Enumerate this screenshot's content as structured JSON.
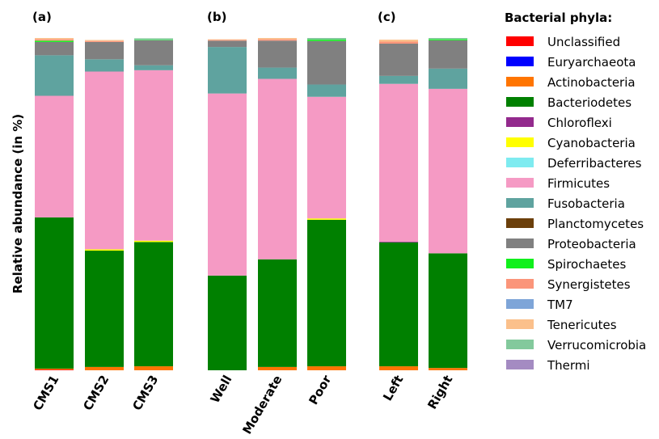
{
  "chart_data": {
    "type": "bar",
    "stacked": true,
    "ylabel": "Relative abundance (in %)",
    "ylim": [
      0,
      100
    ],
    "legend_title": "Bacterial phyla:",
    "legend_position": "right",
    "phyla": [
      {
        "name": "Unclassified",
        "color": "#ff0000"
      },
      {
        "name": "Euryarchaeota",
        "color": "#0000ff"
      },
      {
        "name": "Actinobacteria",
        "color": "#ff7500"
      },
      {
        "name": "Bacteriodetes",
        "color": "#008000"
      },
      {
        "name": "Chloroflexi",
        "color": "#932a8d"
      },
      {
        "name": "Cyanobacteria",
        "color": "#ffff00"
      },
      {
        "name": "Deferribacteres",
        "color": "#7eebf0"
      },
      {
        "name": "Firmicutes",
        "color": "#f59ac4"
      },
      {
        "name": "Fusobacteria",
        "color": "#5fa39f"
      },
      {
        "name": "Planctomycetes",
        "color": "#6b3f0b"
      },
      {
        "name": "Proteobacteria",
        "color": "#808080"
      },
      {
        "name": "Spirochaetes",
        "color": "#10f01c"
      },
      {
        "name": "Synergistetes",
        "color": "#fb957a"
      },
      {
        "name": "TM7",
        "color": "#7ea5d8"
      },
      {
        "name": "Tenericutes",
        "color": "#fbc08b"
      },
      {
        "name": "Verrucomicrobia",
        "color": "#83c99c"
      },
      {
        "name": "Thermi",
        "color": "#a48bc2"
      }
    ],
    "panels": [
      {
        "label": "(a)",
        "bars": [
          {
            "category": "CMS1",
            "values": {
              "Unclassified": 0.2,
              "Actinobacteria": 0.3,
              "Bacteriodetes": 45.5,
              "Firmicutes": 36.6,
              "Fusobacteria": 12.2,
              "Proteobacteria": 4.0,
              "Spirochaetes": 0.4,
              "Synergistetes": 0.4,
              "Tenericutes": 0.4
            }
          },
          {
            "category": "CMS2",
            "values": {
              "Actinobacteria": 1.0,
              "Bacteriodetes": 35.0,
              "Cyanobacteria": 0.4,
              "Firmicutes": 53.5,
              "Fusobacteria": 3.7,
              "Proteobacteria": 5.2,
              "Synergistetes": 0.3,
              "Tenericutes": 0.3
            }
          },
          {
            "category": "CMS3",
            "values": {
              "Actinobacteria": 1.2,
              "Bacteriodetes": 37.4,
              "Cyanobacteria": 0.4,
              "Firmicutes": 51.3,
              "Fusobacteria": 1.5,
              "Proteobacteria": 7.5,
              "Spirochaetes": 0.1,
              "Verrucomicrobia": 0.5
            }
          }
        ]
      },
      {
        "label": "(b)",
        "bars": [
          {
            "category": "Well",
            "values": {
              "Bacteriodetes": 28.5,
              "Firmicutes": 54.8,
              "Fusobacteria": 14.0,
              "Proteobacteria": 1.9,
              "Synergistetes": 0.2,
              "Tenericutes": 0.2
            }
          },
          {
            "category": "Moderate",
            "values": {
              "Actinobacteria": 1.0,
              "Bacteriodetes": 32.4,
              "Firmicutes": 54.3,
              "Fusobacteria": 3.4,
              "Proteobacteria": 8.1,
              "Synergistetes": 0.4,
              "Tenericutes": 0.4
            }
          },
          {
            "category": "Poor",
            "values": {
              "Actinobacteria": 1.2,
              "Bacteriodetes": 44.1,
              "Cyanobacteria": 0.4,
              "Firmicutes": 36.6,
              "Fusobacteria": 3.7,
              "Proteobacteria": 13.1,
              "Spirochaetes": 0.4,
              "Verrucomicrobia": 0.5
            }
          }
        ]
      },
      {
        "label": "(c)",
        "bars": [
          {
            "category": "Left",
            "values": {
              "Actinobacteria": 1.2,
              "Bacteriodetes": 37.3,
              "Chloroflexi": 0.2,
              "Firmicutes": 47.5,
              "Fusobacteria": 2.4,
              "Proteobacteria": 9.7,
              "Synergistetes": 0.6,
              "Tenericutes": 0.6
            }
          },
          {
            "category": "Right",
            "values": {
              "Actinobacteria": 0.7,
              "Bacteriodetes": 34.5,
              "Firmicutes": 49.5,
              "Fusobacteria": 6.1,
              "Proteobacteria": 8.5,
              "Spirochaetes": 0.3,
              "Verrucomicrobia": 0.4
            }
          }
        ]
      }
    ]
  }
}
